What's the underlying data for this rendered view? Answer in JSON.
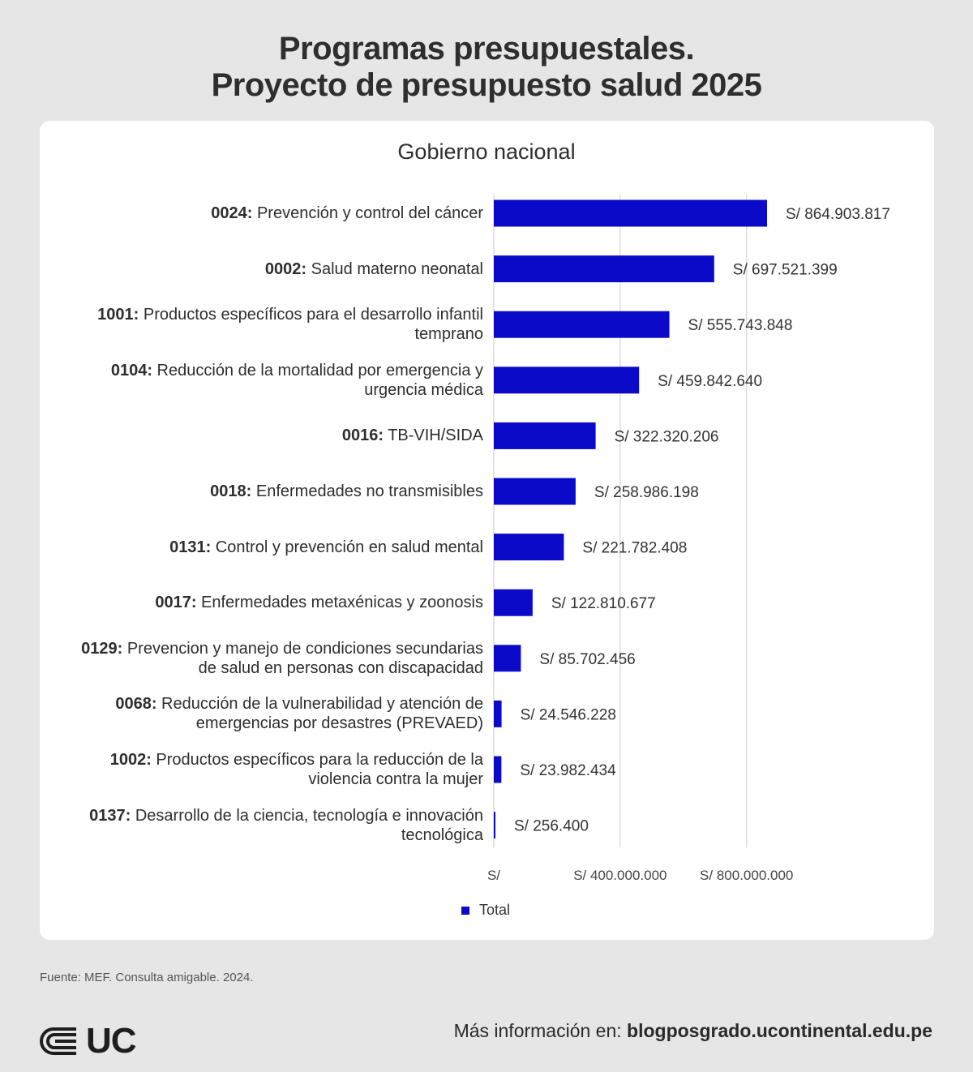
{
  "header": {
    "title_line1": "Programas presupuestales.",
    "title_line2": "Proyecto de presupuesto salud 2025"
  },
  "chart_data": {
    "type": "bar",
    "orientation": "horizontal",
    "subtitle": "Gobierno nacional",
    "categories": [
      {
        "code": "0024:",
        "text": "Prevención y control del cáncer"
      },
      {
        "code": "0002:",
        "text": "Salud materno neonatal"
      },
      {
        "code": "1001:",
        "text": "Productos específicos para el desarrollo infantil temprano"
      },
      {
        "code": "0104:",
        "text": "Reducción de la mortalidad por emergencia y urgencia médica"
      },
      {
        "code": "0016:",
        "text": "TB-VIH/SIDA"
      },
      {
        "code": "0018:",
        "text": "Enfermedades no transmisibles"
      },
      {
        "code": "0131:",
        "text": "Control y prevención en salud mental"
      },
      {
        "code": "0017:",
        "text": "Enfermedades metaxénicas y zoonosis"
      },
      {
        "code": "0129:",
        "text": "Prevencion y manejo de condiciones secundarias de salud en personas con discapacidad"
      },
      {
        "code": "0068:",
        "text": "Reducción de la vulnerabilidad y atención de emergencias por desastres (PREVAED)"
      },
      {
        "code": "1002:",
        "text": "Productos específicos para la reducción de la violencia contra la mujer"
      },
      {
        "code": "0137:",
        "text": "Desarrollo de la ciencia, tecnología e innovación tecnológica"
      }
    ],
    "series": [
      {
        "name": "Total",
        "values": [
          864903817,
          697521399,
          555743848,
          459842640,
          322320206,
          258986198,
          221782408,
          122810677,
          85702456,
          24546228,
          23982434,
          256400
        ],
        "value_labels": [
          "S/ 864.903.817",
          "S/ 697.521.399",
          "S/ 555.743.848",
          "S/ 459.842.640",
          "S/ 322.320.206",
          "S/ 258.986.198",
          "S/ 221.782.408",
          "S/ 122.810.677",
          "S/ 85.702.456",
          "S/ 24.546.228",
          "S/ 23.982.434",
          "S/ 256.400"
        ]
      }
    ],
    "xlim": [
      0,
      864903817
    ],
    "x_ticks": [
      0,
      400000000,
      800000000
    ],
    "x_tick_labels": [
      "S/",
      "S/ 400.000.000",
      "S/ 800.000.000"
    ],
    "grid": "vertical",
    "legend": "bottom",
    "bar_color": "#0a0ac8"
  },
  "footer": {
    "source": "Fuente: MEF. Consulta amigable. 2024.",
    "logo_text": "UC",
    "more_info_prefix": "Más información en: ",
    "more_info_url": "blogposgrado.ucontinental.edu.pe"
  }
}
